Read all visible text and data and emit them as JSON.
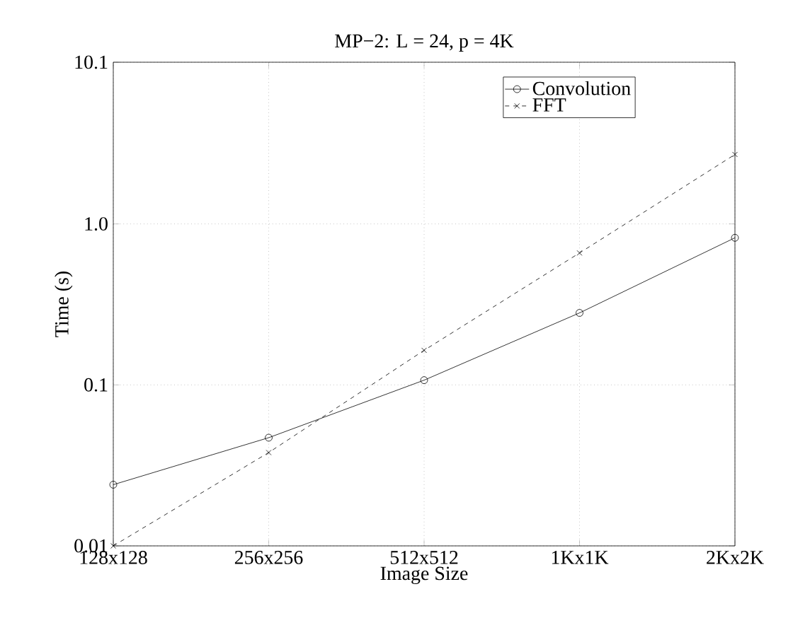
{
  "chart_data": {
    "type": "line",
    "title": "MP−2:  L = 24,  p = 4K",
    "xlabel": "Image Size",
    "ylabel": "Time (s)",
    "categories": [
      "128x128",
      "256x256",
      "512x512",
      "1Kx1K",
      "2Kx2K"
    ],
    "log": "y",
    "ylim": [
      0.01,
      10.1
    ],
    "yticks": [
      0.01,
      0.1,
      {
        "value": 1,
        "label": "1.0"
      },
      10.1
    ],
    "grid": true,
    "legend": "top right",
    "series": [
      {
        "name": "Convolution",
        "color": "#000000",
        "marker": "circle",
        "line_style": "solid",
        "values": [
          0.024,
          0.047,
          0.107,
          0.28,
          0.82
        ]
      },
      {
        "name": "FFT",
        "color": "#000000",
        "marker": "cross",
        "line_style": "dashed",
        "values": [
          0.01,
          0.038,
          0.164,
          0.66,
          2.7
        ]
      }
    ]
  }
}
